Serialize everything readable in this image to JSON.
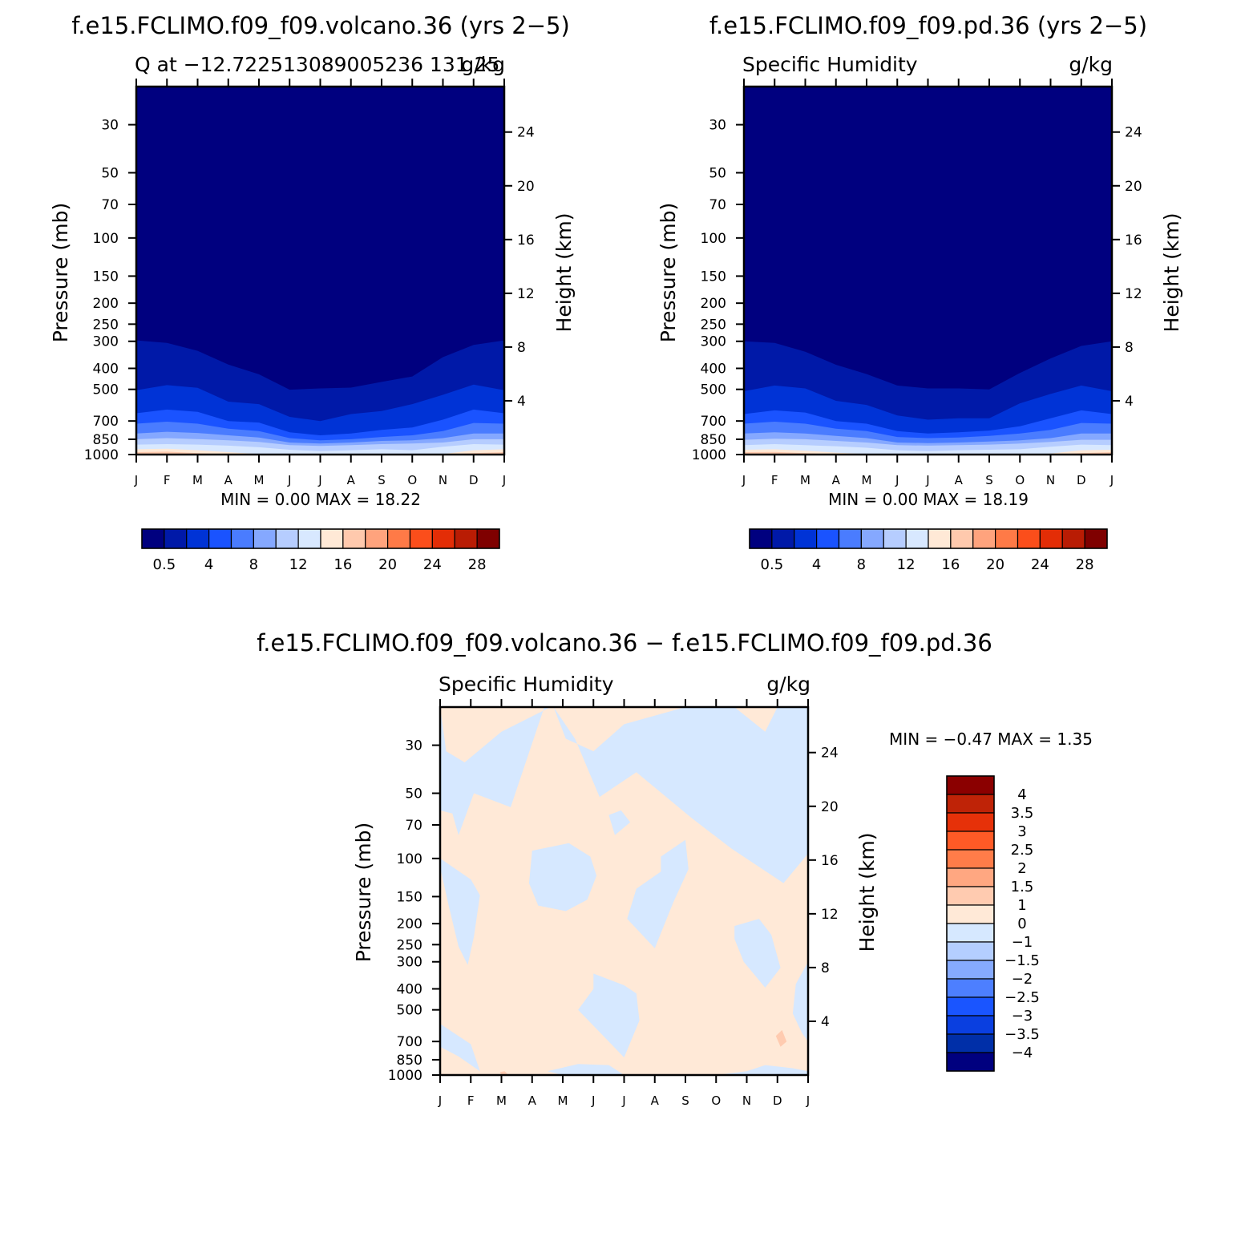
{
  "panels": [
    {
      "key": "volcano",
      "title": "f.e15.FCLIMO.f09_f09.volcano.36 (yrs 2−5)",
      "left_label": "Q at −12.722513089005236 131.25",
      "right_label": "g/kg",
      "ylabel": "Pressure (mb)",
      "y2label": "Height (km)",
      "minmax": "MIN =    0.00  MAX =    18.22"
    },
    {
      "key": "pd",
      "title": "f.e15.FCLIMO.f09_f09.pd.36 (yrs 2−5)",
      "left_label": "Specific Humidity",
      "right_label": "g/kg",
      "ylabel": "Pressure (mb)",
      "y2label": "Height (km)",
      "minmax": "MIN =    0.00  MAX =    18.19"
    },
    {
      "key": "diff",
      "title": "f.e15.FCLIMO.f09_f09.volcano.36 − f.e15.FCLIMO.f09_f09.pd.36",
      "left_label": "Specific Humidity",
      "right_label": "g/kg",
      "ylabel": "Pressure (mb)",
      "y2label": "Height (km)",
      "minmax": "MIN =   −0.47  MAX =    1.35"
    }
  ],
  "colors": {
    "abs_palette": [
      "#00007f",
      "#0019a8",
      "#0033d6",
      "#1a53ff",
      "#4a7cff",
      "#85a8ff",
      "#b6cdff",
      "#d8e8ff",
      "#ffe9d6",
      "#ffc9ad",
      "#ffa37d",
      "#ff7a47",
      "#fb4e1b",
      "#e32d06",
      "#b91c04",
      "#7f0000"
    ],
    "diff_palette": [
      "#00007f",
      "#002fa8",
      "#0a3fe0",
      "#1a55ff",
      "#4d7fff",
      "#86aaff",
      "#b4ceff",
      "#d6e8ff",
      "#ffe9d7",
      "#ffcbb0",
      "#ffa781",
      "#ff7c49",
      "#ff5a26",
      "#e63109",
      "#bf2307",
      "#8b0000"
    ],
    "frame": "#000000"
  },
  "chart_data": [
    {
      "type": "heatmap",
      "panel": "volcano",
      "x_ticks": [
        "J",
        "F",
        "M",
        "A",
        "M",
        "J",
        "J",
        "A",
        "S",
        "O",
        "N",
        "D",
        "J"
      ],
      "y_ticks_pressure_mb": [
        30,
        50,
        70,
        100,
        150,
        200,
        250,
        300,
        400,
        500,
        700,
        850,
        1000
      ],
      "y2_ticks_height_km": [
        4,
        8,
        12,
        16,
        20,
        24
      ],
      "ylim_mb": [
        1000,
        20
      ],
      "min": 0.0,
      "max": 18.22,
      "units": "g/kg",
      "colorbar": {
        "levels": [
          0.5,
          2,
          4,
          6,
          8,
          10,
          12,
          14,
          16,
          18,
          20,
          22,
          24,
          26,
          28
        ],
        "labels": [
          "0.5",
          "4",
          "8",
          "12",
          "16",
          "20",
          "24",
          "28"
        ],
        "label_levels": [
          0.5,
          4,
          8,
          12,
          16,
          20,
          24,
          28
        ]
      },
      "contours_mb_by_month": [
        {
          "level": 0.5,
          "mb": [
            297,
            305,
            332,
            384,
            426,
            502,
            495,
            491,
            462,
            436,
            355,
            312,
            297
          ]
        },
        {
          "level": 2,
          "mb": [
            505,
            478,
            492,
            570,
            585,
            670,
            700,
            650,
            630,
            585,
            530,
            475,
            505
          ]
        },
        {
          "level": 4,
          "mb": [
            645,
            620,
            635,
            700,
            712,
            790,
            815,
            800,
            770,
            750,
            690,
            620,
            645
          ]
        },
        {
          "level": 6,
          "mb": [
            720,
            705,
            720,
            760,
            780,
            840,
            860,
            850,
            830,
            815,
            780,
            715,
            720
          ]
        },
        {
          "level": 8,
          "mb": [
            800,
            785,
            795,
            815,
            835,
            880,
            890,
            880,
            865,
            860,
            840,
            800,
            800
          ]
        },
        {
          "level": 10,
          "mb": [
            850,
            840,
            848,
            860,
            875,
            905,
            912,
            905,
            895,
            890,
            880,
            850,
            850
          ]
        },
        {
          "level": 12,
          "mb": [
            900,
            895,
            900,
            910,
            925,
            950,
            965,
            955,
            945,
            955,
            920,
            895,
            900
          ]
        },
        {
          "level": 14,
          "mb": [
            945,
            940,
            955,
            975,
            995,
            1000,
            1000,
            1000,
            1000,
            1000,
            995,
            955,
            945
          ]
        },
        {
          "level": 16,
          "mb": [
            975,
            970,
            985,
            1000,
            1000,
            1000,
            1000,
            1000,
            1000,
            1000,
            1000,
            985,
            975
          ]
        }
      ]
    },
    {
      "type": "heatmap",
      "panel": "pd",
      "x_ticks": [
        "J",
        "F",
        "M",
        "A",
        "M",
        "J",
        "J",
        "A",
        "S",
        "O",
        "N",
        "D",
        "J"
      ],
      "y_ticks_pressure_mb": [
        30,
        50,
        70,
        100,
        150,
        200,
        250,
        300,
        400,
        500,
        700,
        850,
        1000
      ],
      "y2_ticks_height_km": [
        4,
        8,
        12,
        16,
        20,
        24
      ],
      "ylim_mb": [
        1000,
        20
      ],
      "min": 0.0,
      "max": 18.19,
      "units": "g/kg",
      "colorbar": {
        "levels": [
          0.5,
          2,
          4,
          6,
          8,
          10,
          12,
          14,
          16,
          18,
          20,
          22,
          24,
          26,
          28
        ],
        "labels": [
          "0.5",
          "4",
          "8",
          "12",
          "16",
          "20",
          "24",
          "28"
        ],
        "label_levels": [
          0.5,
          4,
          8,
          12,
          16,
          20,
          24,
          28
        ]
      },
      "contours_mb_by_month": [
        {
          "level": 0.5,
          "mb": [
            300,
            305,
            335,
            385,
            425,
            480,
            495,
            495,
            500,
            420,
            360,
            315,
            300
          ]
        },
        {
          "level": 2,
          "mb": [
            510,
            480,
            495,
            565,
            590,
            660,
            690,
            680,
            680,
            580,
            525,
            480,
            510
          ]
        },
        {
          "level": 4,
          "mb": [
            650,
            625,
            640,
            700,
            720,
            780,
            800,
            790,
            775,
            740,
            680,
            625,
            650
          ]
        },
        {
          "level": 6,
          "mb": [
            720,
            705,
            720,
            760,
            780,
            830,
            840,
            835,
            820,
            800,
            770,
            715,
            720
          ]
        },
        {
          "level": 8,
          "mb": [
            800,
            790,
            800,
            820,
            840,
            880,
            885,
            880,
            870,
            860,
            840,
            800,
            800
          ]
        },
        {
          "level": 10,
          "mb": [
            855,
            845,
            850,
            865,
            880,
            905,
            910,
            905,
            900,
            890,
            875,
            855,
            855
          ]
        },
        {
          "level": 12,
          "mb": [
            905,
            895,
            905,
            915,
            930,
            955,
            965,
            955,
            950,
            945,
            920,
            900,
            905
          ]
        },
        {
          "level": 14,
          "mb": [
            950,
            945,
            960,
            980,
            995,
            1000,
            1000,
            1000,
            1000,
            1000,
            990,
            955,
            950
          ]
        },
        {
          "level": 16,
          "mb": [
            975,
            972,
            985,
            1000,
            1000,
            1000,
            1000,
            1000,
            1000,
            1000,
            1000,
            985,
            975
          ]
        }
      ]
    },
    {
      "type": "heatmap",
      "panel": "diff",
      "x_ticks": [
        "J",
        "F",
        "M",
        "A",
        "M",
        "J",
        "J",
        "A",
        "S",
        "O",
        "N",
        "D",
        "J"
      ],
      "y_ticks_pressure_mb": [
        30,
        50,
        70,
        100,
        150,
        200,
        250,
        300,
        400,
        500,
        700,
        850,
        1000
      ],
      "y2_ticks_height_km": [
        4,
        8,
        12,
        16,
        20,
        24
      ],
      "ylim_mb": [
        1000,
        20
      ],
      "min": -0.47,
      "max": 1.35,
      "units": "g/kg",
      "colorbar": {
        "levels": [
          -4,
          -3.5,
          -3,
          -2.5,
          -2,
          -1.5,
          -1,
          0,
          1,
          1.5,
          2,
          2.5,
          3,
          3.5,
          4
        ],
        "labels": [
          "4",
          "3.5",
          "3",
          "2.5",
          "2",
          "1.5",
          "1",
          "0",
          "−1",
          "−1.5",
          "−2",
          "−2.5",
          "−3",
          "−3.5",
          "−4"
        ]
      },
      "negative_regions": [
        {
          "months": [
            0.0,
            0.0,
            0.2,
            0.8,
            2.0,
            3.6,
            3.4,
            2.3,
            1.1,
            0.6,
            0.4,
            0.0
          ],
          "mb": [
            20,
            20,
            32,
            36,
            26,
            20,
            20,
            58,
            50,
            78,
            62,
            60
          ]
        },
        {
          "months": [
            3.7,
            4.1,
            5.0,
            6.0,
            8.0,
            9.6,
            10.6,
            11.0,
            12.0,
            12.0,
            11.2,
            9.5,
            8.2,
            6.4,
            5.2,
            4.4
          ],
          "mb": [
            20,
            28,
            32,
            24,
            20,
            20,
            26,
            20,
            20,
            95,
            130,
            90,
            65,
            40,
            52,
            28
          ]
        },
        {
          "months": [
            0.0,
            1.0,
            1.3,
            1.1,
            0.9,
            0.6,
            0.3,
            0.0
          ],
          "mb": [
            100,
            125,
            148,
            230,
            310,
            255,
            170,
            110
          ]
        },
        {
          "months": [
            3.0,
            4.2,
            4.9,
            5.1,
            4.8,
            4.1,
            3.2,
            2.9
          ],
          "mb": [
            92,
            85,
            98,
            120,
            155,
            175,
            165,
            130
          ]
        },
        {
          "months": [
            5.5,
            5.9,
            6.2,
            5.7,
            5.5
          ],
          "mb": [
            63,
            60,
            68,
            78,
            63
          ]
        },
        {
          "months": [
            7.2,
            8.0,
            8.1,
            7.6,
            7.0,
            6.1,
            6.4,
            7.2
          ],
          "mb": [
            98,
            82,
            112,
            160,
            260,
            190,
            138,
            115
          ]
        },
        {
          "months": [
            9.6,
            10.4,
            10.8,
            11.1,
            10.6,
            9.9,
            9.6
          ],
          "mb": [
            205,
            190,
            225,
            320,
            395,
            300,
            235
          ]
        },
        {
          "months": [
            5.0,
            6.0,
            6.4,
            6.5,
            6.0,
            5.5,
            4.5,
            5.0
          ],
          "mb": [
            340,
            385,
            420,
            560,
            830,
            700,
            500,
            400
          ]
        },
        {
          "months": [
            0.0,
            1.0,
            1.3,
            0.6,
            0.0
          ],
          "mb": [
            580,
            720,
            960,
            820,
            740
          ]
        },
        {
          "months": [
            3.5,
            4.5,
            5.5,
            6.0,
            5.0,
            4.0,
            3.5
          ],
          "mb": [
            960,
            890,
            900,
            1000,
            1000,
            1000,
            960
          ]
        },
        {
          "months": [
            9.0,
            10.0,
            10.6,
            11.5,
            12.0,
            12.0,
            10.0,
            9.0
          ],
          "mb": [
            1000,
            960,
            900,
            930,
            960,
            1000,
            1000,
            1000
          ]
        },
        {
          "months": [
            12.0,
            11.6,
            11.5,
            11.8,
            12.0
          ],
          "mb": [
            300,
            380,
            520,
            640,
            700
          ]
        }
      ],
      "positive_regions_above_1": [
        {
          "months": [
            10.95,
            11.15,
            11.3,
            11.1,
            10.95
          ],
          "mb": [
            660,
            620,
            700,
            740,
            660
          ]
        },
        {
          "months": [
            1.95,
            2.1,
            2.2,
            2.0,
            1.95
          ],
          "mb": [
            970,
            960,
            985,
            1000,
            970
          ]
        }
      ]
    }
  ]
}
